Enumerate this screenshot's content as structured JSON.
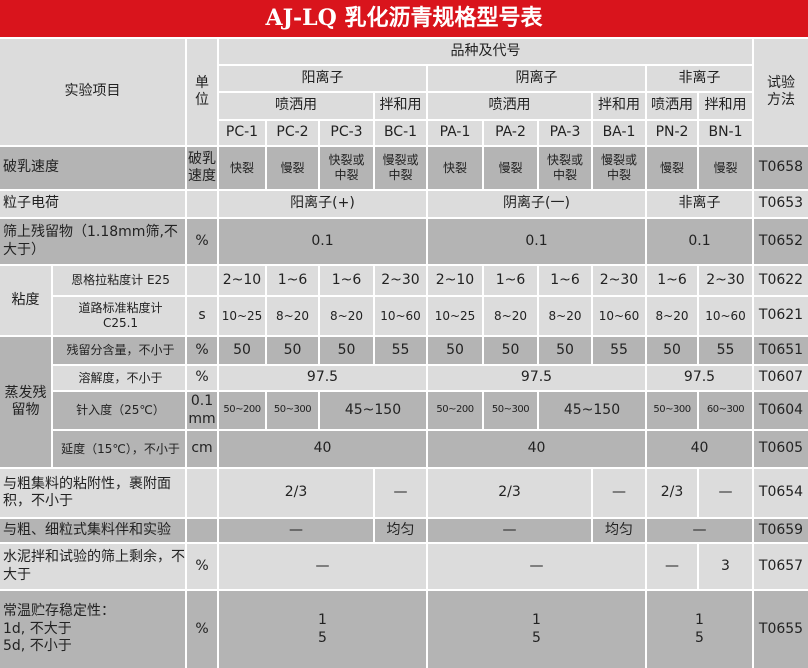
{
  "title": "AJ-LQ 乳化沥青规格型号表",
  "colors": {
    "title_bg": "#d9141c",
    "dark_row": "#b4b4b4",
    "light_row": "#dcdcdc"
  },
  "header": {
    "item": "实验项目",
    "unit": "单\n位",
    "variety": "品种及代号",
    "method": "试验\n方法",
    "cationic": "阳离子",
    "anionic": "阴离子",
    "nonionic": "非离子",
    "spray": "喷洒用",
    "mix": "拌和用",
    "codes": [
      "PC-1",
      "PC-2",
      "PC-3",
      "BC-1",
      "PA-1",
      "PA-2",
      "PA-3",
      "BA-1",
      "PN-2",
      "BN-1"
    ]
  },
  "rows": {
    "demulsify": {
      "label": "破乳速度",
      "unit": "",
      "values": [
        "快裂",
        "慢裂",
        "快裂或\n中裂",
        "慢裂或\n中裂",
        "快裂",
        "慢裂",
        "快裂或\n中裂",
        "慢裂或\n中裂",
        "慢裂",
        "慢裂"
      ],
      "method": "T0658"
    },
    "charge": {
      "label": "粒子电荷",
      "unit": "",
      "values": [
        "阳离子(+)",
        "阴离子(一)",
        "非离子"
      ],
      "method": "T0653"
    },
    "sieve": {
      "label": "筛上残留物（1.18mm筛,不大于）",
      "unit": "%",
      "values": [
        "0.1",
        "0.1",
        "0.1"
      ],
      "method": "T0652"
    },
    "viscosity": {
      "label": "粘度",
      "engler": {
        "label": "恩格拉粘度计 E25",
        "unit": "",
        "values": [
          "2~10",
          "1~6",
          "1~6",
          "2~30",
          "2~10",
          "1~6",
          "1~6",
          "2~30",
          "1~6",
          "2~30"
        ],
        "method": "T0622"
      },
      "road": {
        "label": "道路标准粘度计\nC25.1",
        "unit": "s",
        "values": [
          "10~25",
          "8~20",
          "8~20",
          "10~60",
          "10~25",
          "8~20",
          "8~20",
          "10~60",
          "8~20",
          "10~60"
        ],
        "method": "T0621"
      }
    },
    "residue": {
      "label": "蒸发残\n留物",
      "content": {
        "label": "残留分含量，不小于",
        "unit": "%",
        "values": [
          "50",
          "50",
          "50",
          "55",
          "50",
          "50",
          "50",
          "55",
          "50",
          "55"
        ],
        "method": "T0651"
      },
      "solubility": {
        "label": "溶解度，不小于",
        "unit": "%",
        "values": [
          "97.5",
          "97.5",
          "97.5"
        ],
        "method": "T0607"
      },
      "penetration": {
        "label": "针入度（25℃）",
        "unit": "0.1\nmm",
        "values": [
          "50~200",
          "50~300",
          "45~150",
          "50~200",
          "50~300",
          "45~150",
          "50~300",
          "60~300"
        ],
        "method": "T0604"
      },
      "ductility": {
        "label": "延度（15℃），不小于",
        "unit": "cm",
        "values": [
          "40",
          "40",
          "40"
        ],
        "method": "T0605"
      }
    },
    "adhesion": {
      "label": "与粗集料的粘附性，裹附面积，不小于",
      "unit": "",
      "values": [
        "2/3",
        "—",
        "2/3",
        "—",
        "2/3",
        "—"
      ],
      "method": "T0654"
    },
    "mixing": {
      "label": "与粗、细粒式集料伴和实验",
      "unit": "",
      "values": [
        "—",
        "均匀",
        "—",
        "均匀",
        "—"
      ],
      "method": "T0659"
    },
    "cement": {
      "label": "水泥拌和试验的筛上剩余，不大于",
      "unit": "%",
      "values": [
        "—",
        "—",
        "—",
        "3"
      ],
      "method": "T0657"
    },
    "storage": {
      "label": "常温贮存稳定性：\n1d, 不大于\n5d, 不小于",
      "unit": "%",
      "values": [
        "1\n5",
        "1\n5",
        "1\n5"
      ],
      "method": "T0655"
    }
  }
}
